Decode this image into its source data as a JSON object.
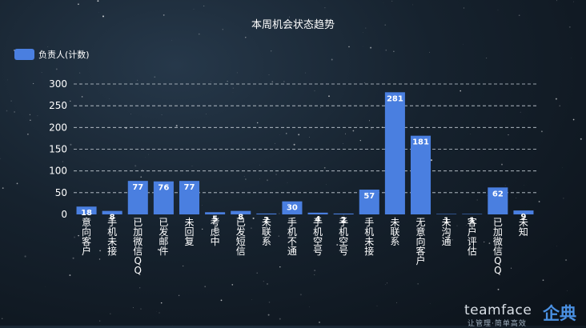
{
  "chart_data": {
    "type": "bar",
    "title": "本周机会状态趋势",
    "legend": {
      "position": "top-left",
      "entries": [
        "负责人(计数)"
      ]
    },
    "series": [
      {
        "name": "负责人(计数)",
        "color": "#4a7fe0",
        "values": [
          18,
          8,
          77,
          76,
          77,
          5,
          8,
          2,
          30,
          4,
          2,
          57,
          281,
          181,
          1,
          1,
          62,
          9
        ]
      }
    ],
    "categories": [
      "意向客户",
      "手机未接",
      "已加微信QQ",
      "已发邮件",
      "未回复",
      "考虑中",
      "已发短信",
      "未联系",
      "手机不通",
      "手机空号",
      "手机空号",
      "手机未接",
      "未联系",
      "无意向客户",
      "未沟通",
      "客户评估",
      "已加微信QQ",
      "未知"
    ],
    "ylim": [
      0,
      300
    ],
    "yticks": [
      0,
      50,
      100,
      150,
      200,
      250,
      300
    ],
    "grid": true
  },
  "watermark": {
    "logo": "teamface",
    "brand": "企典",
    "slogan": "让管理·简单高效"
  }
}
